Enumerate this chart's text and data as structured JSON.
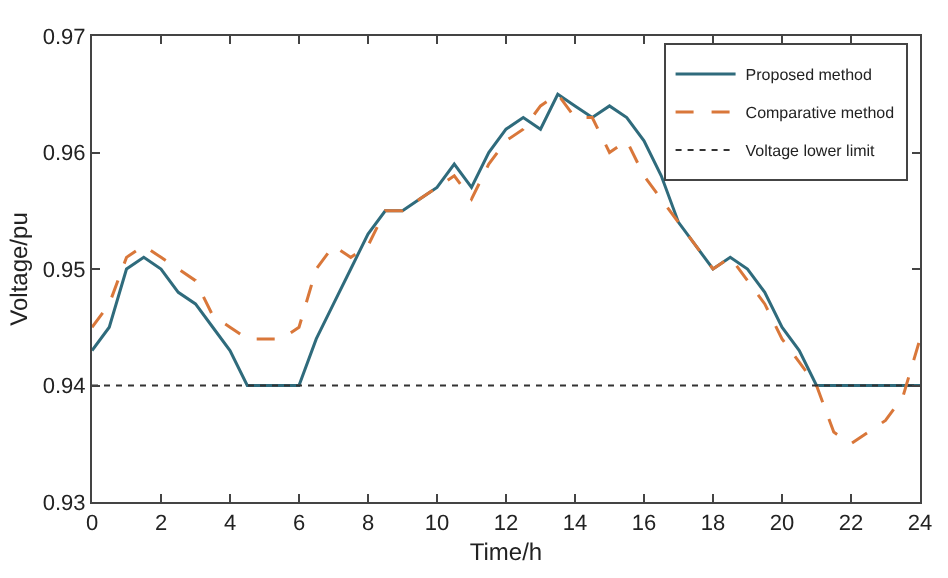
{
  "chart_data": {
    "type": "line",
    "xlabel": "Time/h",
    "ylabel": "Voltage/pu",
    "x": [
      0,
      0.5,
      1,
      1.5,
      2,
      2.5,
      3,
      3.5,
      4,
      4.5,
      5,
      5.5,
      6,
      6.5,
      7,
      7.5,
      8,
      8.5,
      9,
      9.5,
      10,
      10.5,
      11,
      11.5,
      12,
      12.5,
      13,
      13.5,
      14,
      14.5,
      15,
      15.5,
      16,
      16.5,
      17,
      17.5,
      18,
      18.5,
      19,
      19.5,
      20,
      20.5,
      21,
      21.5,
      22,
      22.5,
      23,
      23.5,
      24
    ],
    "series": [
      {
        "name": "Proposed method",
        "color": "#2f6b7c",
        "line_style": "solid",
        "values": [
          0.943,
          0.945,
          0.95,
          0.951,
          0.95,
          0.948,
          0.947,
          0.945,
          0.943,
          0.94,
          0.94,
          0.94,
          0.94,
          0.944,
          0.947,
          0.95,
          0.953,
          0.955,
          0.955,
          0.956,
          0.957,
          0.959,
          0.957,
          0.96,
          0.962,
          0.963,
          0.962,
          0.965,
          0.964,
          0.963,
          0.964,
          0.963,
          0.961,
          0.958,
          0.954,
          0.952,
          0.95,
          0.951,
          0.95,
          0.948,
          0.945,
          0.943,
          0.94,
          0.94,
          0.94,
          0.94,
          0.94,
          0.94,
          0.94
        ]
      },
      {
        "name": "Comparative method",
        "color": "#d9773a",
        "line_style": "dashed",
        "values": [
          0.945,
          0.947,
          0.951,
          0.952,
          0.951,
          0.95,
          0.949,
          0.946,
          0.945,
          0.944,
          0.944,
          0.944,
          0.945,
          0.95,
          0.952,
          0.951,
          0.952,
          0.955,
          0.955,
          0.956,
          0.957,
          0.958,
          0.956,
          0.959,
          0.961,
          0.962,
          0.964,
          0.965,
          0.963,
          0.963,
          0.96,
          0.961,
          0.958,
          0.956,
          0.954,
          0.952,
          0.95,
          0.951,
          0.949,
          0.947,
          0.944,
          0.942,
          0.94,
          0.936,
          0.935,
          0.936,
          0.937,
          0.939,
          0.944
        ]
      }
    ],
    "ref_lines": [
      {
        "axis": "y",
        "value": 0.94,
        "label": "Voltage lower limit",
        "color": "#333333",
        "line_style": "dotted"
      }
    ],
    "xlim": [
      0,
      24
    ],
    "xticks": [
      0,
      2,
      4,
      6,
      8,
      10,
      12,
      14,
      16,
      18,
      20,
      22,
      24
    ],
    "ylim": [
      0.93,
      0.97
    ],
    "yticks": [
      0.93,
      0.94,
      0.95,
      0.96,
      0.97
    ],
    "grid": false,
    "legend": "top right",
    "marker": "none"
  }
}
